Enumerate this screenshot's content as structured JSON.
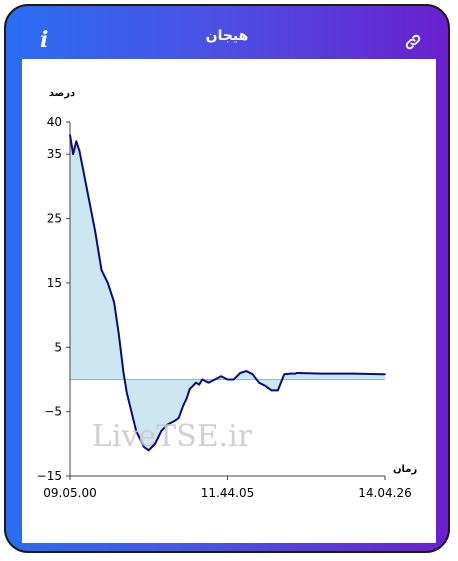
{
  "header": {
    "title": "هیجان",
    "info_label": "i",
    "link_icon": "link-icon"
  },
  "colors": {
    "gradient_start": "#2a6df2",
    "gradient_end": "#6a1fcf",
    "line": "#0a0a80",
    "fill": "#cde7f2",
    "zero_line": "#9ab8c8"
  },
  "chart_data": {
    "type": "area",
    "title": "",
    "ylabel": "درصد",
    "xlabel": "زمان",
    "ylim": [
      -15,
      40
    ],
    "yticks": [
      -15,
      -5,
      5,
      15,
      25,
      35,
      40
    ],
    "xticks": [
      "09.05.00",
      "11.44.05",
      "14.04.26"
    ],
    "watermark": "LiveTSE.ir",
    "grid": false,
    "series": [
      {
        "x_fraction": [
          0,
          0.01,
          0.02,
          0.03,
          0.04,
          0.06,
          0.08,
          0.1,
          0.12,
          0.14,
          0.155,
          0.17,
          0.18,
          0.19,
          0.2,
          0.21,
          0.22,
          0.235,
          0.25,
          0.27,
          0.29,
          0.31,
          0.33,
          0.345,
          0.36,
          0.37,
          0.38,
          0.39,
          0.4,
          0.41,
          0.42,
          0.44,
          0.46,
          0.48,
          0.5,
          0.52,
          0.54,
          0.56,
          0.58,
          0.6,
          0.62,
          0.64,
          0.66,
          0.68,
          0.7,
          0.715,
          0.72,
          0.723,
          0.8,
          0.9,
          1.0
        ],
        "values": [
          38,
          35,
          37,
          35.5,
          33,
          28,
          23,
          17,
          15,
          12,
          7,
          1,
          -2,
          -4,
          -6,
          -8,
          -9,
          -10.5,
          -11,
          -10,
          -8,
          -7,
          -6.5,
          -6,
          -4,
          -3,
          -1.5,
          -1,
          -0.5,
          -0.8,
          0,
          -0.5,
          0,
          0.5,
          0,
          0,
          1,
          1.3,
          0.8,
          -0.5,
          -1,
          -1.7,
          -1.7,
          0.8,
          0.9,
          0.9,
          1.0,
          1.0,
          0.9,
          0.9,
          0.8
        ]
      }
    ]
  }
}
